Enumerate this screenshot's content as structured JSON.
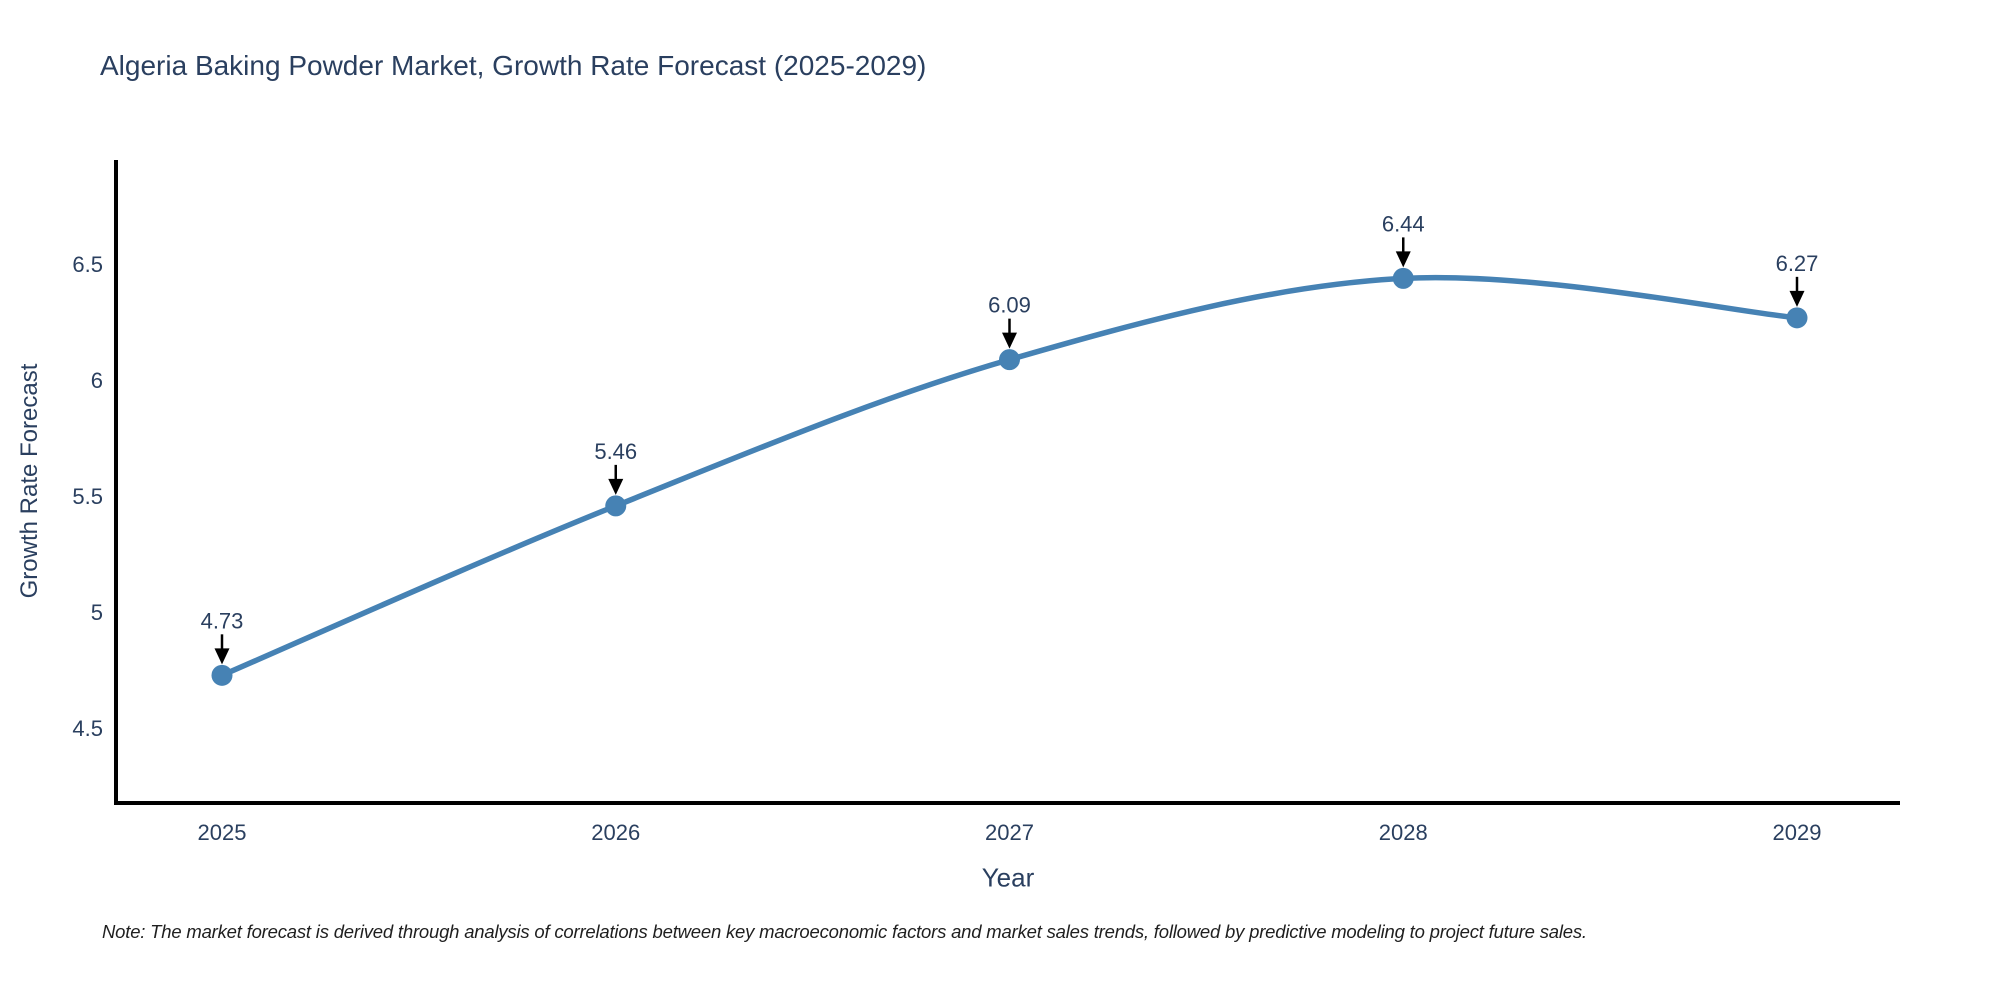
{
  "chart_data": {
    "type": "line",
    "title": "Algeria Baking Powder Market, Growth Rate Forecast (2025-2029)",
    "xlabel": "Year",
    "ylabel": "Growth Rate Forecast",
    "categories": [
      "2025",
      "2026",
      "2027",
      "2028",
      "2029"
    ],
    "series": [
      {
        "name": "Growth Rate Forecast",
        "values": [
          4.73,
          5.46,
          6.09,
          6.44,
          6.27
        ]
      }
    ],
    "annotations": [
      "4.73",
      "5.46",
      "6.09",
      "6.44",
      "6.27"
    ],
    "yticks": [
      "4.5",
      "5",
      "5.5",
      "6",
      "6.5"
    ],
    "ytick_values": [
      4.5,
      5.0,
      5.5,
      6.0,
      6.5
    ],
    "ylim": [
      4.18,
      6.95
    ],
    "grid": false,
    "legend_position": "none",
    "line_shape": "spline",
    "colors": {
      "line": "#4682b4",
      "marker": "#4682b4",
      "axis_line": "#000000",
      "text": "#2a3f5f",
      "annotation_arrow": "#000000"
    }
  },
  "note": {
    "text": "Note: The market forecast is derived through analysis of correlations between key macroeconomic factors and market sales trends, followed by predictive modeling to project future sales."
  }
}
